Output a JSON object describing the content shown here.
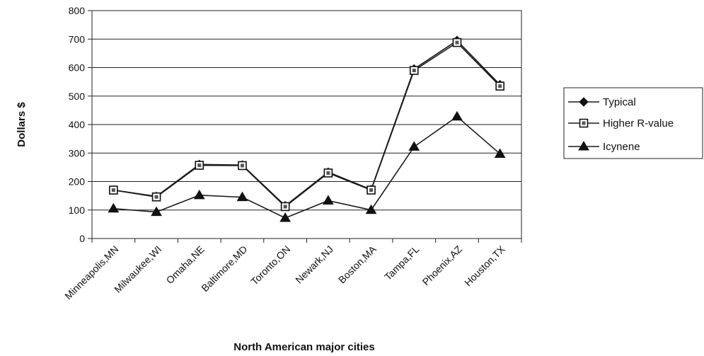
{
  "chart_data": {
    "type": "line",
    "title": "",
    "xlabel": "North American major cities",
    "ylabel": "Dollars $",
    "ylim": [
      0,
      800
    ],
    "yticks": [
      "0",
      "100",
      "200",
      "300",
      "400",
      "500",
      "600",
      "700",
      "800"
    ],
    "grid": true,
    "legend_position": "right",
    "categories": [
      "Minneapolis,MN",
      "Milwaukee,WI",
      "Omaha,NE",
      "Baltimore,MD",
      "Toronto,ON",
      "Newark,NJ",
      "Boston,MA",
      "Tampa,FL",
      "Phoenix,AZ",
      "Houston,TX"
    ],
    "series": [
      {
        "name": "Typical",
        "marker": "diamond",
        "values": [
          170,
          148,
          260,
          258,
          115,
          233,
          172,
          595,
          695,
          540
        ]
      },
      {
        "name": "Higher R-value",
        "marker": "square",
        "values": [
          170,
          146,
          257,
          256,
          112,
          230,
          170,
          590,
          688,
          535
        ]
      },
      {
        "name": "Icynene",
        "marker": "triangle",
        "values": [
          105,
          93,
          152,
          145,
          72,
          133,
          100,
          322,
          428,
          297
        ]
      }
    ]
  }
}
